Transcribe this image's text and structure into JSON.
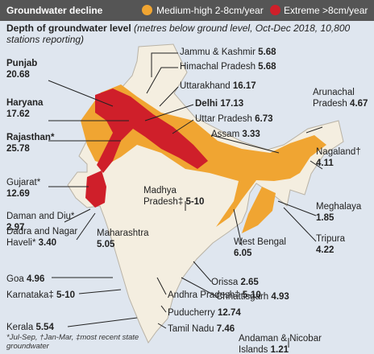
{
  "header": {
    "title": "Groundwater decline",
    "legend": [
      {
        "label": "Medium-high 2-8cm/year",
        "color": "#f0a532"
      },
      {
        "label": "Extreme >8cm/year",
        "color": "#cf1f2a"
      }
    ]
  },
  "subtitle": "Depth of groundwater level",
  "subtitle_note": "(metres below ground level, Oct-Dec 2018, 10,800 stations reporting)",
  "labels": [
    {
      "name": "Jammu & Kashmir",
      "value": "5.68"
    },
    {
      "name": "Himachal Pradesh",
      "value": "5.68"
    },
    {
      "name": "Uttarakhand",
      "value": "16.17"
    },
    {
      "name": "Delhi",
      "value": "17.13"
    },
    {
      "name": "Uttar Pradesh",
      "value": "6.73"
    },
    {
      "name": "Assam",
      "value": "3.33"
    },
    {
      "name": "Punjab",
      "value": "20.68"
    },
    {
      "name": "Haryana",
      "value": "17.62"
    },
    {
      "name": "Rajasthan*",
      "value": "25.78"
    },
    {
      "name": "Arunachal Pradesh",
      "value": "4.67"
    },
    {
      "name": "Nagaland†",
      "value": "4.11"
    },
    {
      "name": "Gujarat*",
      "value": "12.69"
    },
    {
      "name": "Madhya Pradesh‡",
      "value": "5-10"
    },
    {
      "name": "Daman and Diu*",
      "value": "2.97"
    },
    {
      "name": "Dadra and Nagar Haveli*",
      "value": "3.40"
    },
    {
      "name": "Maharashtra",
      "value": "5.05"
    },
    {
      "name": "Meghalaya",
      "value": "1.85"
    },
    {
      "name": "Tripura",
      "value": "4.22"
    },
    {
      "name": "West Bengal",
      "value": "6.05"
    },
    {
      "name": "Orissa",
      "value": "2.65"
    },
    {
      "name": "Chhattisgarh",
      "value": "4.93"
    },
    {
      "name": "Goa",
      "value": "4.96"
    },
    {
      "name": "Karnataka‡",
      "value": "5-10"
    },
    {
      "name": "Andhra Pradesh‡",
      "value": "5-10"
    },
    {
      "name": "Puducherry",
      "value": "12.74"
    },
    {
      "name": "Tamil Nadu",
      "value": "7.46"
    },
    {
      "name": "Kerala",
      "value": "5.54"
    },
    {
      "name": "Andaman & Nicobar Islands",
      "value": "1.21"
    }
  ],
  "footnote": "*Jul-Sep, †Jan-Mar, ‡most recent state groundwater"
}
